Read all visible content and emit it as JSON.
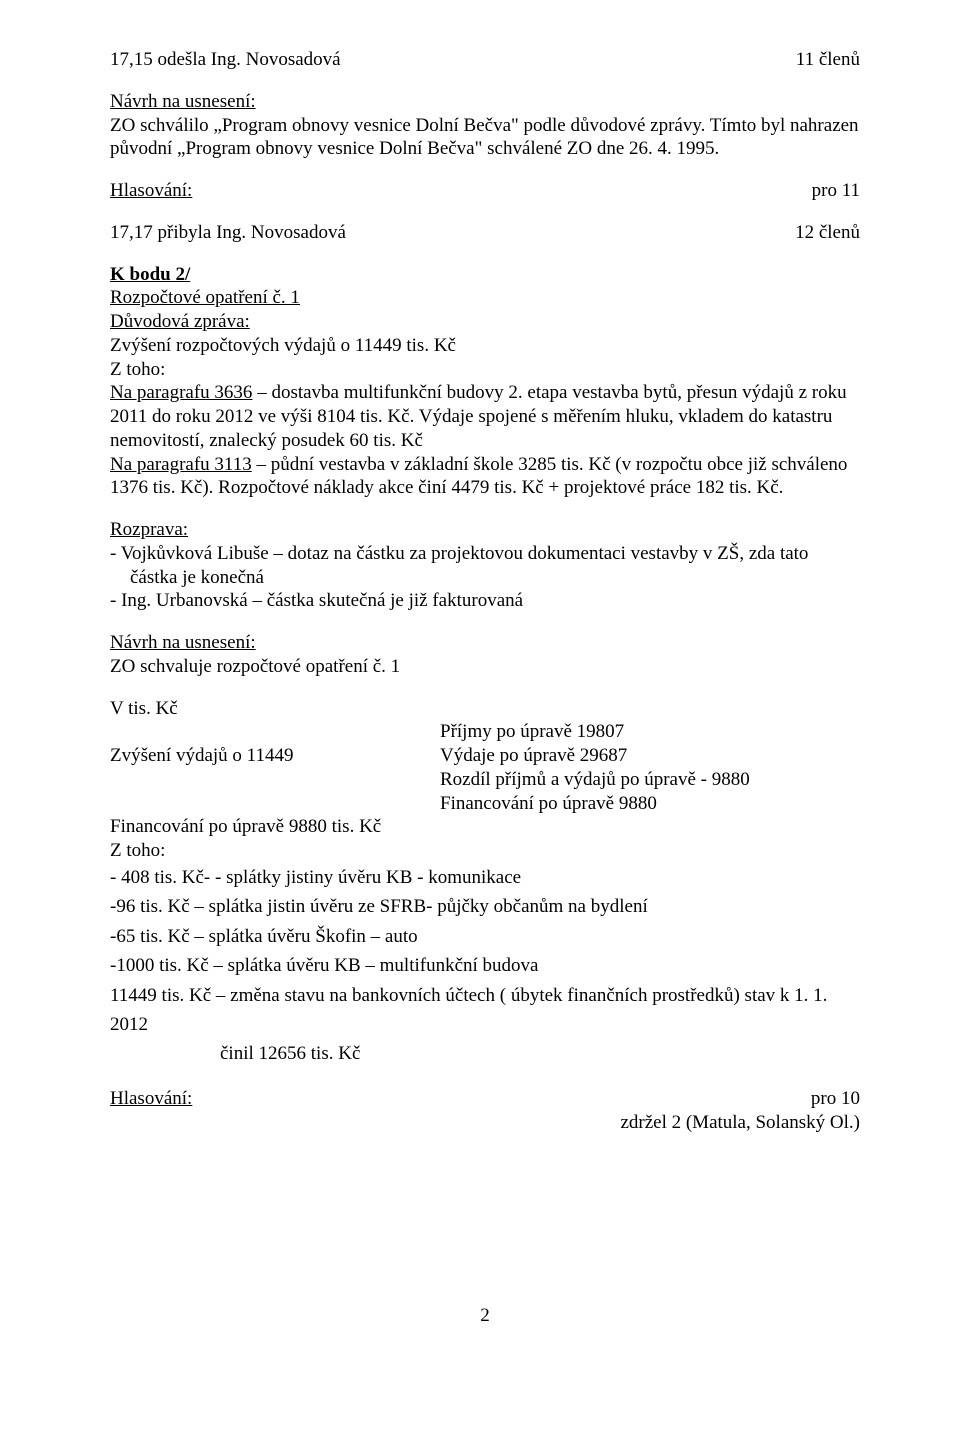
{
  "l1_left": "17,15 odešla Ing. Novosadová",
  "l1_right": "11 členů",
  "navrh1_h": "Návrh na usnesení:",
  "navrh1_body": "ZO schválilo „Program obnovy vesnice Dolní Bečva\" podle důvodové zprávy. Tímto byl nahrazen původní „Program obnovy vesnice Dolní Bečva\" schválené ZO dne 26. 4. 1995.",
  "hlas1_l": "Hlasování:",
  "hlas1_r": "pro 11",
  "l2_left": "17,17 přibyla Ing. Novosadová",
  "l2_right": "12 členů",
  "kbodu": "K bodu 2/",
  "rozpoc_h": "Rozpočtové opatření č. 1",
  "duvod_h": "Důvodová zpráva:",
  "duvod_l1": "Zvýšení rozpočtových výdajů o 11449 tis. Kč",
  "duvod_l2": "Z toho:",
  "para3636_u": "Na paragrafu 3636",
  "para3636_rest": " – dostavba multifunkční budovy 2. etapa vestavba bytů, přesun výdajů z roku 2011 do roku 2012 ve výši 8104 tis. Kč. Výdaje spojené s měřením hluku,  vkladem do katastru nemovitostí, znalecký posudek 60 tis. Kč",
  "para3113_u": "Na paragrafu 3113",
  "para3113_rest": " – půdní vestavba v základní škole 3285 tis. Kč (v rozpočtu obce již schváleno 1376 tis. Kč).   Rozpočtové náklady akce činí 4479 tis. Kč + projektové práce 182 tis. Kč.",
  "rozprava_h": "Rozprava:",
  "roz_l1": "- Vojkůvková Libuše – dotaz na částku za projektovou dokumentaci vestavby v ZŠ, zda tato částka je konečná",
  "roz_l2": "-  Ing. Urbanovská – částka skutečná je již fakturovaná",
  "navrh2_h": "Návrh na usnesení:",
  "navrh2_l1": "ZO schvaluje rozpočtové opatření č. 1",
  "vtis": "V  tis. Kč",
  "zv_vydaju": "Zvýšení výdajů o 11449",
  "pr_uprave": "Příjmy po úpravě 19807",
  "vy_uprave": "Výdaje po úpravě 29687",
  "rozdil": "Rozdíl příjmů a výdajů po úpravě  - 9880",
  "fin_uprave_r": "Financování po úpravě 9880",
  "fin_tis": "Financování po úpravě 9880 tis. Kč",
  "ztoho2": "Z toho:",
  "s408": "- 408 tis. Kč- - splátky jistiny úvěru KB -  komunikace",
  "s96": "-96 tis. Kč – splátka jistin úvěru ze SFRB- půjčky občanům na bydlení",
  "s65": "-65 tis. Kč – splátka úvěru Škofin – auto",
  "s1000": "-1000 tis. Kč – splátka úvěru KB – multifunkční budova",
  "s11449": "11449 tis. Kč – změna stavu na bankovních účtech ( úbytek finančních prostředků) stav k 1. 1.  2012",
  "s11449b": "činil  12656 tis. Kč",
  "hlas2_l": "Hlasování:",
  "hlas2_r1": "pro 10",
  "hlas2_r2": "zdržel 2 (Matula, Solanský Ol.)",
  "pagenum": "2"
}
